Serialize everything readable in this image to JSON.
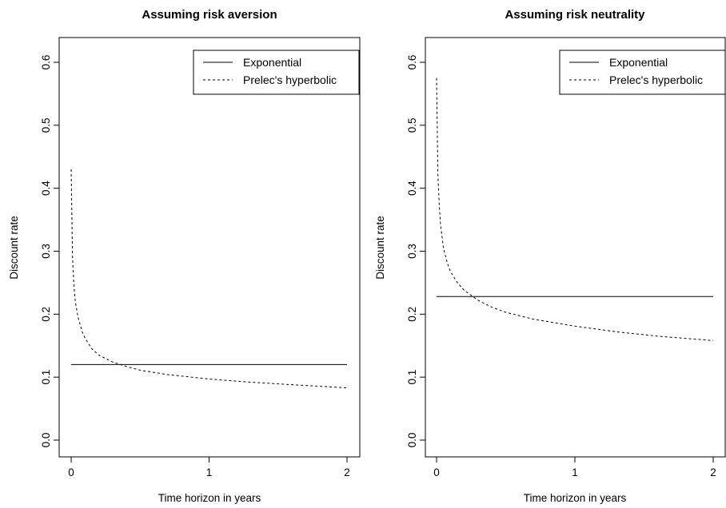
{
  "chart_data": [
    {
      "type": "line",
      "title": "Assuming risk aversion",
      "xlabel": "Time horizon in years",
      "ylabel": "Discount rate",
      "xlim": [
        0,
        2
      ],
      "ylim": [
        0.0,
        0.6
      ],
      "xticks": [
        "0",
        "1",
        "2"
      ],
      "yticks": [
        "0.0",
        "0.1",
        "0.2",
        "0.3",
        "0.4",
        "0.5",
        "0.6"
      ],
      "legend_position": "top-right",
      "series": [
        {
          "name": "Exponential",
          "line_style": "solid",
          "x": [
            0,
            2
          ],
          "y": [
            0.12,
            0.12
          ]
        },
        {
          "name": "Prelec's hyperbolic",
          "line_style": "dashed",
          "x": [
            0.0,
            0.01,
            0.02,
            0.03,
            0.05,
            0.08,
            0.1,
            0.15,
            0.2,
            0.3,
            0.4,
            0.5,
            0.7,
            1.0,
            1.3,
            1.6,
            2.0
          ],
          "y": [
            0.43,
            0.29,
            0.245,
            0.22,
            0.195,
            0.172,
            0.162,
            0.145,
            0.135,
            0.124,
            0.117,
            0.111,
            0.104,
            0.097,
            0.092,
            0.088,
            0.083
          ]
        }
      ]
    },
    {
      "type": "line",
      "title": "Assuming risk neutrality",
      "xlabel": "Time horizon in years",
      "ylabel": "Discount rate",
      "xlim": [
        0,
        2
      ],
      "ylim": [
        0.0,
        0.6
      ],
      "xticks": [
        "0",
        "1",
        "2"
      ],
      "yticks": [
        "0.0",
        "0.1",
        "0.2",
        "0.3",
        "0.4",
        "0.5",
        "0.6"
      ],
      "legend_position": "top-right",
      "series": [
        {
          "name": "Exponential",
          "line_style": "solid",
          "x": [
            0,
            2
          ],
          "y": [
            0.228,
            0.228
          ]
        },
        {
          "name": "Prelec's hyperbolic",
          "line_style": "dashed",
          "x": [
            0.0,
            0.01,
            0.02,
            0.03,
            0.05,
            0.08,
            0.1,
            0.15,
            0.2,
            0.3,
            0.4,
            0.5,
            0.7,
            1.0,
            1.3,
            1.6,
            2.0
          ],
          "y": [
            0.575,
            0.42,
            0.37,
            0.34,
            0.305,
            0.28,
            0.268,
            0.25,
            0.238,
            0.222,
            0.211,
            0.203,
            0.192,
            0.181,
            0.172,
            0.165,
            0.158
          ]
        }
      ]
    }
  ]
}
